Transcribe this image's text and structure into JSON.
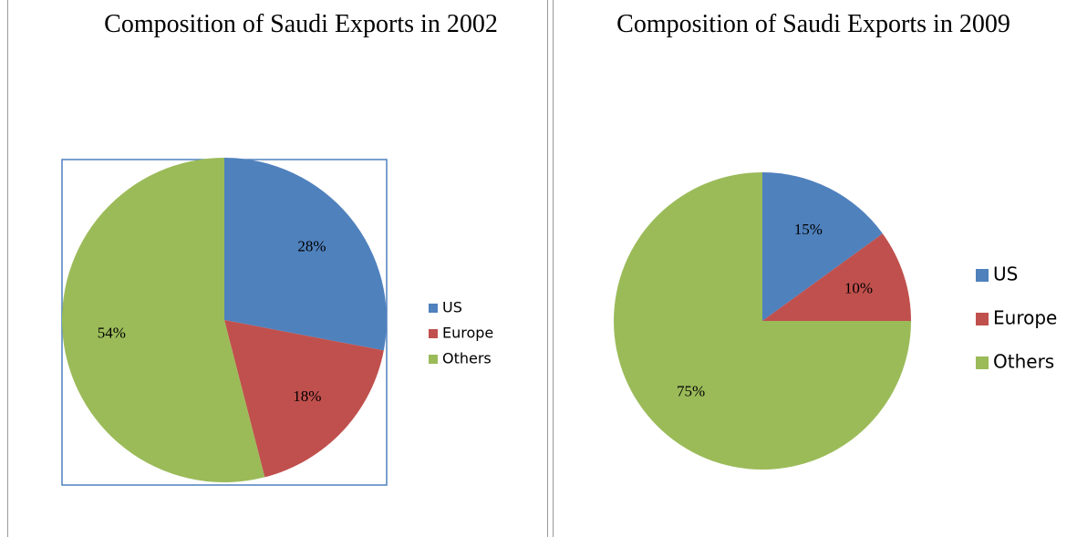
{
  "chart_data": [
    {
      "type": "pie",
      "title": "Composition of Saudi Exports in 2002",
      "categories": [
        "US",
        "Europe",
        "Others"
      ],
      "values": [
        28,
        18,
        54
      ],
      "value_labels": [
        "28%",
        "18%",
        "54%"
      ],
      "colors": [
        "#4f81bd",
        "#c0504d",
        "#9bbb59"
      ],
      "legend": "right"
    },
    {
      "type": "pie",
      "title": "Composition of Saudi Exports in 2009",
      "categories": [
        "US",
        "Europe",
        "Others"
      ],
      "values": [
        15,
        10,
        75
      ],
      "value_labels": [
        "15%",
        "10%",
        "75%"
      ],
      "colors": [
        "#4f81bd",
        "#c0504d",
        "#9bbb59"
      ],
      "legend": "right"
    }
  ]
}
